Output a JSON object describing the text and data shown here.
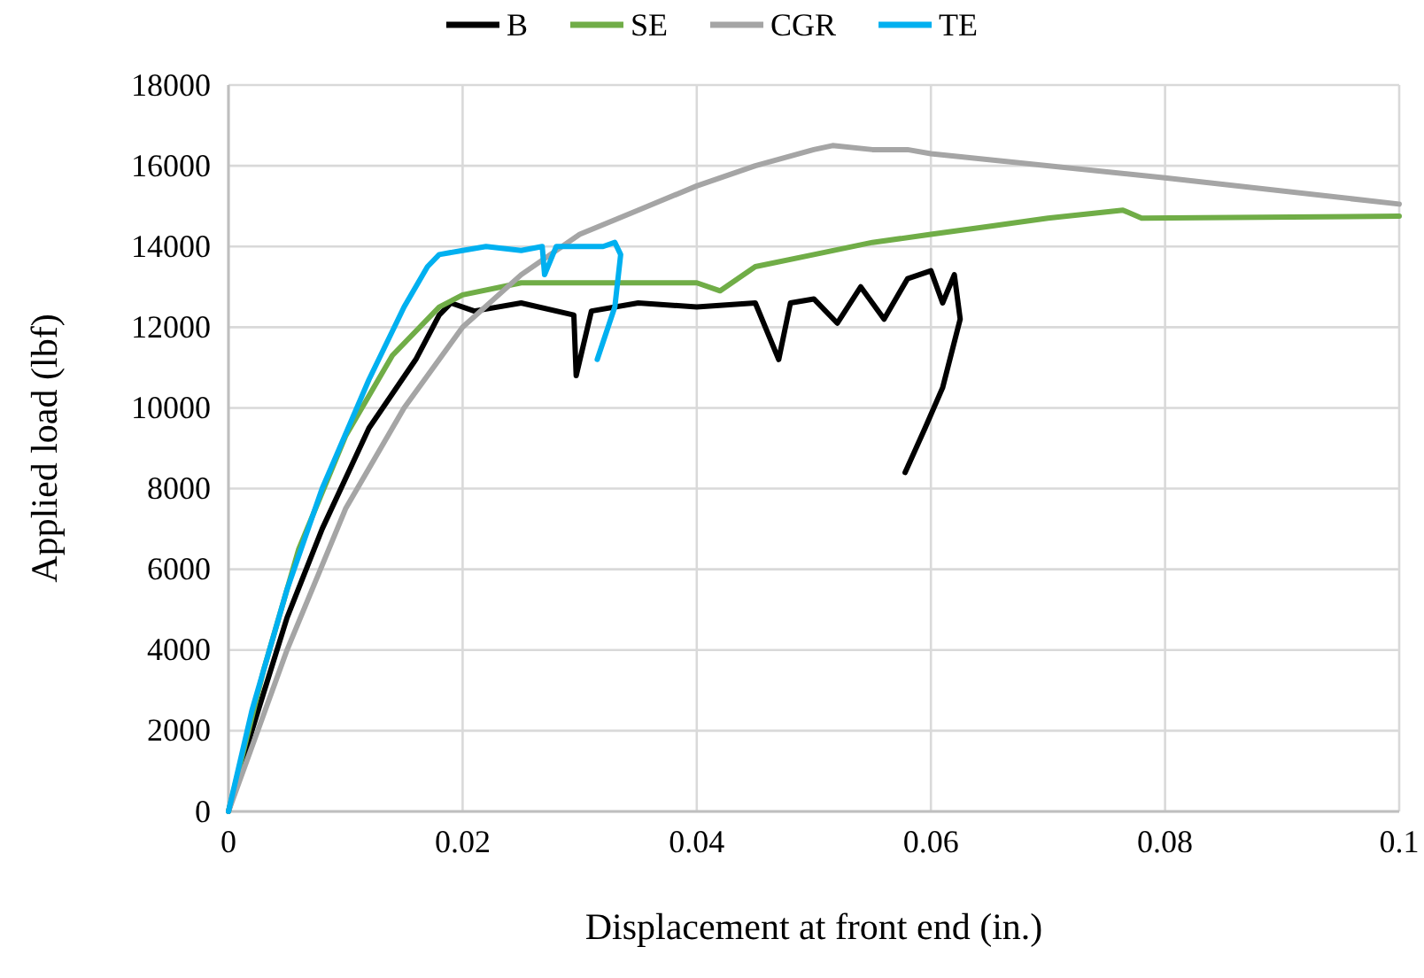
{
  "chart_data": {
    "type": "line",
    "xlabel": "Displacement at front end (in.)",
    "ylabel": "Applied load (lbf)",
    "xlim": [
      0,
      0.1
    ],
    "xticks": [
      0,
      0.02,
      0.04,
      0.06,
      0.08,
      0.1
    ],
    "ylim": [
      0,
      18000
    ],
    "yticks": [
      0,
      2000,
      4000,
      6000,
      8000,
      10000,
      12000,
      14000,
      16000,
      18000
    ],
    "grid": true,
    "legend": "top",
    "marker": "none",
    "line_style": "solid",
    "series": [
      {
        "name": "B",
        "color": "#000000",
        "x": [
          0,
          0.002,
          0.005,
          0.008,
          0.012,
          0.016,
          0.018,
          0.019,
          0.021,
          0.025,
          0.0295,
          0.0297,
          0.031,
          0.035,
          0.04,
          0.045,
          0.047,
          0.048,
          0.05,
          0.052,
          0.054,
          0.056,
          0.058,
          0.06,
          0.061,
          0.062,
          0.0625,
          0.061,
          0.0595,
          0.0578
        ],
        "values": [
          0,
          2000,
          4800,
          7000,
          9500,
          11200,
          12300,
          12600,
          12400,
          12600,
          12300,
          10800,
          12400,
          12600,
          12500,
          12600,
          11200,
          12600,
          12700,
          12100,
          13000,
          12200,
          13200,
          13400,
          12600,
          13300,
          12200,
          10500,
          9500,
          8400
        ]
      },
      {
        "name": "SE",
        "color": "#70ad47",
        "x": [
          0,
          0.003,
          0.006,
          0.01,
          0.014,
          0.018,
          0.02,
          0.025,
          0.03,
          0.035,
          0.04,
          0.042,
          0.045,
          0.05,
          0.055,
          0.06,
          0.065,
          0.07,
          0.0764,
          0.078,
          0.1
        ],
        "values": [
          0,
          3500,
          6500,
          9300,
          11300,
          12500,
          12800,
          13100,
          13100,
          13100,
          13100,
          12900,
          13500,
          13800,
          14100,
          14300,
          14500,
          14700,
          14900,
          14700,
          14750
        ]
      },
      {
        "name": "CGR",
        "color": "#a5a5a5",
        "x": [
          0,
          0.005,
          0.01,
          0.015,
          0.02,
          0.025,
          0.03,
          0.035,
          0.04,
          0.045,
          0.05,
          0.0516,
          0.055,
          0.058,
          0.06,
          0.08,
          0.1
        ],
        "values": [
          0,
          4000,
          7500,
          10000,
          12000,
          13300,
          14300,
          14900,
          15500,
          16000,
          16400,
          16500,
          16400,
          16400,
          16300,
          15700,
          15050
        ]
      },
      {
        "name": "TE",
        "color": "#00b0f0",
        "x": [
          0,
          0.002,
          0.005,
          0.008,
          0.012,
          0.015,
          0.017,
          0.018,
          0.02,
          0.022,
          0.025,
          0.0268,
          0.027,
          0.028,
          0.03,
          0.032,
          0.033,
          0.0335,
          0.033,
          0.0315
        ],
        "values": [
          0,
          2500,
          5500,
          8000,
          10700,
          12500,
          13500,
          13800,
          13900,
          14000,
          13900,
          14000,
          13300,
          14000,
          14000,
          14000,
          14100,
          13800,
          12500,
          11200
        ]
      }
    ]
  }
}
